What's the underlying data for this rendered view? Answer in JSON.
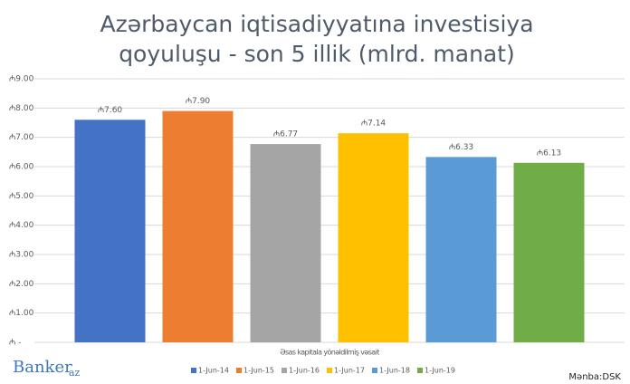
{
  "chart_data": {
    "type": "bar",
    "title": "Azərbaycan iqtisadiyyatına investisiya qoyuluşu - son 5 illik (mlrd. manat)",
    "categories": [
      "Əsas kapitala yönəldilmiş vəsait"
    ],
    "series": [
      {
        "name": "1-Jun-14",
        "color": "#4472c4",
        "values": [
          7.6
        ],
        "value_labels": [
          "₼7.60"
        ]
      },
      {
        "name": "1-Jun-15",
        "color": "#ed7d31",
        "values": [
          7.9
        ],
        "value_labels": [
          "₼7.90"
        ]
      },
      {
        "name": "1-Jun-16",
        "color": "#a5a5a5",
        "values": [
          6.77
        ],
        "value_labels": [
          "₼6.77"
        ]
      },
      {
        "name": "1-Jun-17",
        "color": "#ffc000",
        "values": [
          7.14
        ],
        "value_labels": [
          "₼7.14"
        ]
      },
      {
        "name": "1-Jun-18",
        "color": "#5b9bd5",
        "values": [
          6.33
        ],
        "value_labels": [
          "₼6.33"
        ]
      },
      {
        "name": "1-Jun-19",
        "color": "#70ad47",
        "values": [
          6.13
        ],
        "value_labels": [
          "₼6.13"
        ]
      }
    ],
    "ylim": [
      0,
      9
    ],
    "yticks": [
      {
        "value": 0,
        "label": "₼ -"
      },
      {
        "value": 1,
        "label": "₼1.00"
      },
      {
        "value": 2,
        "label": "₼2.00"
      },
      {
        "value": 3,
        "label": "₼3.00"
      },
      {
        "value": 4,
        "label": "₼4.00"
      },
      {
        "value": 5,
        "label": "₼5.00"
      },
      {
        "value": 6,
        "label": "₼6.00"
      },
      {
        "value": 7,
        "label": "₼7.00"
      },
      {
        "value": 8,
        "label": "₼8.00"
      },
      {
        "value": 9,
        "label": "₼9.00"
      }
    ],
    "grid": true,
    "legend": "bottom",
    "logo": "Banker",
    "logo_suffix": "az",
    "source": "Mənba:DSK"
  }
}
